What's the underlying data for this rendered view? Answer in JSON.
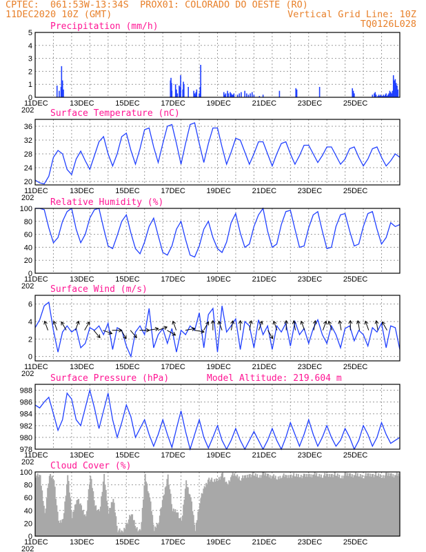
{
  "header": {
    "line1": "CPTEC:  061:53W-13:34S  PROX01: COLORADO DO OESTE (RO)",
    "line2": "11DEC2020 10Z (GMT)",
    "grid_note": "Vertical Grid Line: 10Z",
    "code": "TQ0126L028"
  },
  "x_axis": {
    "labels": [
      "11DEC",
      "13DEC",
      "15DEC",
      "17DEC",
      "19DEC",
      "21DEC",
      "23DEC",
      "25DEC"
    ],
    "year_fragment": "202"
  },
  "chart_data": [
    {
      "type": "bar",
      "title": "Precipitation  (mm/h)",
      "ylim": [
        0,
        5
      ],
      "yticks": [
        0,
        1,
        2,
        3,
        4,
        5
      ],
      "color": "#1f3fff",
      "x_unit": "days since 11DEC 10Z",
      "x": [
        1.2,
        1.32,
        1.42,
        1.45,
        1.5,
        1.55,
        7.42,
        7.45,
        7.48,
        7.5,
        7.7,
        7.75,
        7.8,
        7.9,
        7.95,
        7.98,
        8.1,
        8.13,
        8.16,
        8.4,
        8.7,
        8.75,
        8.78,
        8.82,
        8.86,
        9.0,
        9.05,
        9.08,
        10.35,
        10.4,
        10.45,
        10.55,
        10.6,
        10.7,
        10.75,
        10.8,
        10.85,
        10.9,
        11.1,
        11.2,
        11.3,
        11.5,
        11.6,
        11.7,
        11.8,
        11.9,
        12.0,
        12.3,
        12.5,
        13.4,
        14.3,
        14.35,
        15.6,
        17.4,
        17.45,
        17.5,
        18.5,
        18.6,
        18.65,
        18.7,
        18.8,
        18.85,
        18.9,
        18.95,
        19.0,
        19.05,
        19.1,
        19.15,
        19.2,
        19.25,
        19.3,
        19.35,
        19.4,
        19.45,
        19.5,
        19.55,
        19.6,
        19.65,
        19.7,
        19.75,
        19.8,
        19.85,
        19.9
      ],
      "values": [
        0.9,
        0.5,
        0.8,
        2.4,
        1.3,
        0.6,
        1.3,
        1.5,
        1.1,
        0.5,
        1.0,
        0.6,
        0.3,
        0.9,
        0.8,
        1.7,
        0.6,
        1.2,
        1.0,
        0.8,
        0.5,
        0.3,
        0.2,
        0.4,
        0.6,
        0.3,
        0.8,
        2.5,
        0.4,
        0.2,
        0.3,
        0.5,
        0.3,
        0.4,
        0.3,
        0.2,
        0.2,
        0.3,
        0.2,
        0.3,
        0.4,
        0.5,
        0.3,
        0.2,
        0.3,
        0.4,
        0.2,
        0.1,
        0.2,
        0.5,
        0.7,
        0.6,
        0.8,
        0.7,
        0.5,
        0.3,
        0.2,
        0.3,
        0.4,
        0.2,
        0.1,
        0.2,
        0.1,
        0.2,
        0.1,
        0.1,
        0.2,
        0.1,
        0.2,
        0.3,
        0.1,
        0.2,
        0.3,
        0.5,
        0.4,
        0.3,
        0.5,
        1.7,
        1.3,
        1.4,
        1.1,
        0.9,
        0.6
      ]
    },
    {
      "type": "line",
      "title": "Surface Temperature (nC)",
      "ylim": [
        19,
        38
      ],
      "yticks": [
        20,
        24,
        28,
        32,
        36
      ],
      "color": "#1f3fff",
      "x_unit": "days since 11DEC 10Z",
      "x": [
        0,
        0.25,
        0.5,
        0.75,
        1.0,
        1.25,
        1.5,
        1.75,
        2.0,
        2.25,
        2.5,
        2.75,
        3.0,
        3.25,
        3.5,
        3.75,
        4.0,
        4.25,
        4.5,
        4.75,
        5.0,
        5.25,
        5.5,
        5.75,
        6.0,
        6.25,
        6.5,
        6.75,
        7.0,
        7.25,
        7.5,
        7.75,
        8.0,
        8.25,
        8.5,
        8.75,
        9.0,
        9.25,
        9.5,
        9.75,
        10.0,
        10.25,
        10.5,
        10.75,
        11.0,
        11.25,
        11.5,
        11.75,
        12.0,
        12.25,
        12.5,
        12.75,
        13.0,
        13.25,
        13.5,
        13.75,
        14.0,
        14.25,
        14.5,
        14.75,
        15.0,
        15.25,
        15.5,
        15.75,
        16.0,
        16.25,
        16.5,
        16.75,
        17.0,
        17.25,
        17.5,
        17.75,
        18.0,
        18.25,
        18.5,
        18.75,
        19.0,
        19.25,
        19.5,
        19.75,
        20.0
      ],
      "values": [
        20.4,
        19.6,
        19.3,
        21.5,
        27.0,
        29.0,
        28.0,
        23.5,
        22.0,
        26.5,
        28.8,
        26.0,
        23.5,
        27.5,
        31.5,
        33.0,
        28.0,
        24.5,
        28.0,
        33.0,
        34.0,
        29.0,
        25.0,
        29.5,
        35.0,
        35.5,
        30.0,
        25.5,
        31.0,
        36.0,
        36.5,
        31.0,
        25.0,
        31.0,
        36.5,
        37.0,
        31.0,
        25.5,
        31.0,
        35.5,
        35.5,
        30.0,
        25.0,
        28.5,
        32.5,
        32.0,
        28.5,
        25.0,
        28.0,
        31.5,
        31.5,
        28.0,
        24.5,
        28.0,
        31.0,
        31.5,
        28.0,
        25.0,
        27.5,
        30.5,
        30.5,
        28.0,
        25.5,
        27.5,
        30.0,
        30.0,
        27.5,
        25.0,
        26.5,
        29.5,
        30.0,
        27.0,
        24.5,
        26.5,
        29.5,
        30.0,
        27.0,
        24.5,
        26.0,
        28.0,
        27.0
      ]
    },
    {
      "type": "line",
      "title": "Relative Humidity (%)",
      "ylim": [
        0,
        100
      ],
      "yticks": [
        0,
        20,
        40,
        60,
        80,
        100
      ],
      "color": "#1f3fff",
      "x_unit": "days since 11DEC 10Z",
      "x": [
        0,
        0.25,
        0.5,
        0.75,
        1.0,
        1.25,
        1.5,
        1.75,
        2.0,
        2.25,
        2.5,
        2.75,
        3.0,
        3.25,
        3.5,
        3.75,
        4.0,
        4.25,
        4.5,
        4.75,
        5.0,
        5.25,
        5.5,
        5.75,
        6.0,
        6.25,
        6.5,
        6.75,
        7.0,
        7.25,
        7.5,
        7.75,
        8.0,
        8.25,
        8.5,
        8.75,
        9.0,
        9.25,
        9.5,
        9.75,
        10.0,
        10.25,
        10.5,
        10.75,
        11.0,
        11.25,
        11.5,
        11.75,
        12.0,
        12.25,
        12.5,
        12.75,
        13.0,
        13.25,
        13.5,
        13.75,
        14.0,
        14.25,
        14.5,
        14.75,
        15.0,
        15.25,
        15.5,
        15.75,
        16.0,
        16.25,
        16.5,
        16.75,
        17.0,
        17.25,
        17.5,
        17.75,
        18.0,
        18.25,
        18.5,
        18.75,
        19.0,
        19.25,
        19.5,
        19.75,
        20.0
      ],
      "values": [
        100,
        100,
        98,
        70,
        47,
        55,
        80,
        95,
        100,
        68,
        47,
        60,
        85,
        98,
        100,
        70,
        42,
        38,
        58,
        80,
        90,
        62,
        38,
        30,
        48,
        72,
        85,
        58,
        32,
        28,
        42,
        68,
        80,
        52,
        28,
        25,
        42,
        68,
        80,
        55,
        38,
        32,
        48,
        78,
        92,
        62,
        40,
        45,
        72,
        90,
        100,
        65,
        40,
        45,
        75,
        95,
        97,
        68,
        40,
        42,
        70,
        90,
        95,
        65,
        38,
        40,
        72,
        90,
        92,
        65,
        42,
        45,
        72,
        92,
        95,
        68,
        45,
        55,
        78,
        72,
        75
      ]
    },
    {
      "type": "line",
      "title": "Surface Wind (m/s)",
      "ylim": [
        -0.5,
        7
      ],
      "yticks": [
        0,
        2,
        4,
        6
      ],
      "color": "#1f3fff",
      "x_unit": "days since 11DEC 10Z",
      "x": [
        0,
        0.25,
        0.5,
        0.75,
        1.0,
        1.25,
        1.5,
        1.75,
        2.0,
        2.25,
        2.5,
        2.75,
        3.0,
        3.25,
        3.5,
        3.75,
        4.0,
        4.25,
        4.5,
        4.75,
        5.0,
        5.25,
        5.5,
        5.75,
        6.0,
        6.25,
        6.5,
        6.75,
        7.0,
        7.25,
        7.5,
        7.75,
        8.0,
        8.25,
        8.5,
        8.75,
        9.0,
        9.25,
        9.5,
        9.75,
        10.0,
        10.25,
        10.5,
        10.75,
        11.0,
        11.25,
        11.5,
        11.75,
        12.0,
        12.25,
        12.5,
        12.75,
        13.0,
        13.25,
        13.5,
        13.75,
        14.0,
        14.25,
        14.5,
        14.75,
        15.0,
        15.25,
        15.5,
        15.75,
        16.0,
        16.25,
        16.5,
        16.75,
        17.0,
        17.25,
        17.5,
        17.75,
        18.0,
        18.25,
        18.5,
        18.75,
        19.0,
        19.25,
        19.5,
        19.75,
        20.0
      ],
      "values": [
        3.3,
        4.2,
        5.8,
        6.2,
        3.0,
        0.5,
        2.8,
        3.5,
        2.8,
        3.2,
        1.0,
        1.5,
        3.3,
        3.0,
        3.5,
        2.5,
        3.8,
        0.8,
        3.3,
        3.0,
        1.2,
        0.0,
        2.8,
        3.5,
        2.5,
        5.5,
        1.0,
        2.5,
        3.2,
        1.5,
        3.2,
        0.5,
        3.0,
        2.5,
        3.5,
        3.0,
        5.0,
        1.0,
        4.8,
        5.5,
        0.5,
        5.8,
        2.8,
        3.5,
        4.3,
        0.8,
        4.0,
        3.5,
        1.0,
        4.2,
        2.5,
        3.5,
        0.8,
        3.5,
        2.8,
        3.8,
        1.2,
        4.0,
        2.5,
        3.2,
        1.5,
        3.2,
        4.2,
        2.5,
        1.5,
        3.5,
        2.5,
        1.0,
        3.2,
        3.5,
        1.8,
        3.0,
        2.5,
        1.2,
        3.3,
        2.8,
        3.8,
        1.0,
        3.5,
        3.3,
        0.8
      ],
      "arrows_dir_deg": [
        200,
        200,
        210,
        160,
        150,
        40,
        70,
        90,
        30,
        40,
        90,
        100,
        110,
        60,
        200,
        100,
        80,
        150,
        180,
        200,
        170,
        180,
        170,
        160,
        30,
        200,
        180,
        190,
        200,
        170,
        160,
        200,
        190,
        180,
        190,
        200,
        190,
        210
      ]
    },
    {
      "type": "line",
      "title": "Surface Pressure (hPa)",
      "subtitle": "Model Altitude: 219.604 m",
      "ylim": [
        978,
        989
      ],
      "yticks": [
        978,
        980,
        982,
        984,
        986,
        988
      ],
      "color": "#1f3fff",
      "x_unit": "days since 11DEC 10Z",
      "x": [
        0,
        0.25,
        0.5,
        0.75,
        1.0,
        1.25,
        1.5,
        1.75,
        2.0,
        2.25,
        2.5,
        2.75,
        3.0,
        3.25,
        3.5,
        3.75,
        4.0,
        4.25,
        4.5,
        4.75,
        5.0,
        5.25,
        5.5,
        5.75,
        6.0,
        6.25,
        6.5,
        6.75,
        7.0,
        7.25,
        7.5,
        7.75,
        8.0,
        8.25,
        8.5,
        8.75,
        9.0,
        9.25,
        9.5,
        9.75,
        10.0,
        10.25,
        10.5,
        10.75,
        11.0,
        11.25,
        11.5,
        11.75,
        12.0,
        12.25,
        12.5,
        12.75,
        13.0,
        13.25,
        13.5,
        13.75,
        14.0,
        14.25,
        14.5,
        14.75,
        15.0,
        15.25,
        15.5,
        15.75,
        16.0,
        16.25,
        16.5,
        16.75,
        17.0,
        17.25,
        17.5,
        17.75,
        18.0,
        18.25,
        18.5,
        18.75,
        19.0,
        19.25,
        19.5,
        19.75,
        20.0
      ],
      "values": [
        985.5,
        985.0,
        986.0,
        986.8,
        984.0,
        981.2,
        983.0,
        987.5,
        986.5,
        983.0,
        982.0,
        985.0,
        988.0,
        985.0,
        981.5,
        984.5,
        987.5,
        983.0,
        980.0,
        982.5,
        985.5,
        983.5,
        980.0,
        981.5,
        983.0,
        980.5,
        978.5,
        980.5,
        983.0,
        980.5,
        978.3,
        981.5,
        984.5,
        981.0,
        978.0,
        980.5,
        983.0,
        980.0,
        978.2,
        980.0,
        982.0,
        979.5,
        978.0,
        979.5,
        981.5,
        979.5,
        978.0,
        979.5,
        981.0,
        979.5,
        978.0,
        979.5,
        981.5,
        979.5,
        978.0,
        980.0,
        982.5,
        980.5,
        978.5,
        980.5,
        983.0,
        980.5,
        978.5,
        980.0,
        982.0,
        980.0,
        978.5,
        979.5,
        981.5,
        980.0,
        978.0,
        979.5,
        982.0,
        980.5,
        978.5,
        980.0,
        982.5,
        980.5,
        979.0,
        979.5,
        980.0
      ]
    },
    {
      "type": "area",
      "title": "Cloud Cover (%)",
      "ylim": [
        0,
        100
      ],
      "yticks": [
        0,
        20,
        40,
        60,
        80,
        100
      ],
      "color": "#a8a8a8",
      "x_unit": "days since 11DEC 10Z",
      "x": [
        0,
        0.25,
        0.5,
        0.75,
        1.0,
        1.25,
        1.5,
        1.75,
        2.0,
        2.25,
        2.5,
        2.75,
        3.0,
        3.25,
        3.5,
        3.75,
        4.0,
        4.25,
        4.5,
        4.75,
        5.0,
        5.25,
        5.5,
        5.75,
        6.0,
        6.25,
        6.5,
        6.75,
        7.0,
        7.25,
        7.5,
        7.75,
        8.0,
        8.25,
        8.5,
        8.75,
        9.0,
        9.25,
        9.5,
        9.75,
        10.0,
        10.25,
        10.5,
        10.75,
        11.0,
        11.25,
        11.5,
        11.75,
        12.0,
        12.25,
        12.5,
        12.75,
        13.0,
        13.25,
        13.5,
        13.75,
        14.0,
        14.25,
        14.5,
        14.75,
        15.0,
        15.25,
        15.5,
        15.75,
        16.0,
        16.25,
        16.5,
        16.75,
        17.0,
        17.25,
        17.5,
        17.75,
        18.0,
        18.25,
        18.5,
        18.75,
        19.0,
        19.25,
        19.5,
        19.75,
        20.0
      ],
      "values": [
        95,
        92,
        35,
        95,
        90,
        20,
        25,
        95,
        30,
        60,
        45,
        30,
        95,
        50,
        35,
        95,
        35,
        60,
        10,
        5,
        20,
        35,
        15,
        5,
        95,
        60,
        10,
        25,
        60,
        95,
        40,
        40,
        20,
        85,
        60,
        10,
        55,
        75,
        90,
        85,
        90,
        95,
        80,
        95,
        95,
        90,
        92,
        96,
        95,
        94,
        96,
        95,
        93,
        90,
        95,
        92,
        95,
        94,
        95,
        93,
        95,
        96,
        95,
        95,
        94,
        96,
        95,
        93,
        95,
        96,
        95,
        95,
        94,
        95,
        96,
        95,
        94,
        95,
        96,
        95,
        95
      ]
    }
  ]
}
